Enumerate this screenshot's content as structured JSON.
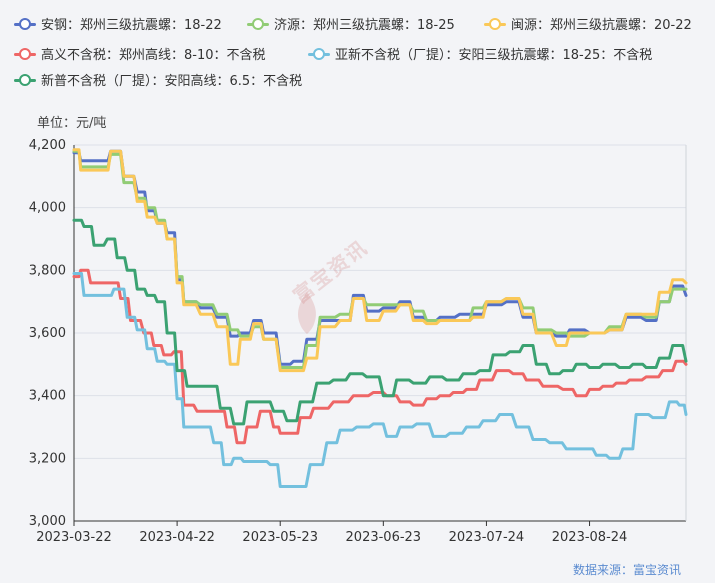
{
  "unit_label": "单位：元/吨",
  "source": "数据来源：富宝资讯",
  "watermark": "富宝资讯",
  "chart_data": {
    "type": "line",
    "ylim": [
      3000,
      4200
    ],
    "yticks": [
      3000,
      3200,
      3400,
      3600,
      3800,
      4000,
      4200
    ],
    "ytick_labels": [
      "3,000",
      "3,200",
      "3,400",
      "3,600",
      "3,800",
      "4,000",
      "4,200"
    ],
    "x_start": "2023-03-22",
    "x_end": "2023-09-22",
    "xticks": [
      "2023-03-22",
      "2023-04-22",
      "2023-05-23",
      "2023-06-23",
      "2023-07-24",
      "2023-08-24"
    ],
    "grid": true,
    "legend_position": "top",
    "series": [
      {
        "name": "安钢：郑州三级抗震螺：18-22",
        "color": "#5470c6",
        "points": [
          [
            "2023-03-22",
            4175
          ],
          [
            "2023-03-24",
            4150
          ],
          [
            "2023-03-30",
            4150
          ],
          [
            "2023-04-02",
            4180
          ],
          [
            "2023-04-06",
            4100
          ],
          [
            "2023-04-10",
            4050
          ],
          [
            "2023-04-13",
            3990
          ],
          [
            "2023-04-16",
            3950
          ],
          [
            "2023-04-19",
            3920
          ],
          [
            "2023-04-22",
            3770
          ],
          [
            "2023-04-24",
            3700
          ],
          [
            "2023-04-29",
            3680
          ],
          [
            "2023-05-04",
            3650
          ],
          [
            "2023-05-08",
            3590
          ],
          [
            "2023-05-11",
            3600
          ],
          [
            "2023-05-15",
            3640
          ],
          [
            "2023-05-18",
            3600
          ],
          [
            "2023-05-23",
            3500
          ],
          [
            "2023-05-27",
            3510
          ],
          [
            "2023-05-31",
            3580
          ],
          [
            "2023-06-04",
            3640
          ],
          [
            "2023-06-10",
            3640
          ],
          [
            "2023-06-14",
            3720
          ],
          [
            "2023-06-18",
            3670
          ],
          [
            "2023-06-23",
            3680
          ],
          [
            "2023-06-28",
            3700
          ],
          [
            "2023-07-02",
            3650
          ],
          [
            "2023-07-06",
            3640
          ],
          [
            "2023-07-10",
            3650
          ],
          [
            "2023-07-16",
            3660
          ],
          [
            "2023-07-20",
            3660
          ],
          [
            "2023-07-24",
            3690
          ],
          [
            "2023-07-30",
            3700
          ],
          [
            "2023-08-04",
            3650
          ],
          [
            "2023-08-08",
            3600
          ],
          [
            "2023-08-14",
            3590
          ],
          [
            "2023-08-18",
            3610
          ],
          [
            "2023-08-24",
            3600
          ],
          [
            "2023-08-30",
            3610
          ],
          [
            "2023-09-04",
            3650
          ],
          [
            "2023-09-10",
            3640
          ],
          [
            "2023-09-14",
            3700
          ],
          [
            "2023-09-18",
            3750
          ],
          [
            "2023-09-22",
            3720
          ]
        ]
      },
      {
        "name": "济源：郑州三级抗震螺：18-25",
        "color": "#91cc75",
        "points": [
          [
            "2023-03-22",
            4180
          ],
          [
            "2023-03-24",
            4130
          ],
          [
            "2023-03-30",
            4130
          ],
          [
            "2023-04-02",
            4170
          ],
          [
            "2023-04-06",
            4080
          ],
          [
            "2023-04-10",
            4030
          ],
          [
            "2023-04-13",
            4000
          ],
          [
            "2023-04-16",
            3960
          ],
          [
            "2023-04-19",
            3900
          ],
          [
            "2023-04-22",
            3780
          ],
          [
            "2023-04-24",
            3700
          ],
          [
            "2023-04-29",
            3690
          ],
          [
            "2023-05-04",
            3660
          ],
          [
            "2023-05-08",
            3610
          ],
          [
            "2023-05-11",
            3590
          ],
          [
            "2023-05-15",
            3620
          ],
          [
            "2023-05-18",
            3580
          ],
          [
            "2023-05-23",
            3490
          ],
          [
            "2023-05-27",
            3490
          ],
          [
            "2023-05-31",
            3560
          ],
          [
            "2023-06-04",
            3650
          ],
          [
            "2023-06-10",
            3660
          ],
          [
            "2023-06-14",
            3710
          ],
          [
            "2023-06-18",
            3690
          ],
          [
            "2023-06-23",
            3690
          ],
          [
            "2023-06-28",
            3690
          ],
          [
            "2023-07-02",
            3670
          ],
          [
            "2023-07-06",
            3640
          ],
          [
            "2023-07-10",
            3640
          ],
          [
            "2023-07-16",
            3640
          ],
          [
            "2023-07-20",
            3680
          ],
          [
            "2023-07-24",
            3700
          ],
          [
            "2023-07-30",
            3710
          ],
          [
            "2023-08-04",
            3680
          ],
          [
            "2023-08-08",
            3610
          ],
          [
            "2023-08-14",
            3600
          ],
          [
            "2023-08-18",
            3590
          ],
          [
            "2023-08-24",
            3600
          ],
          [
            "2023-08-30",
            3620
          ],
          [
            "2023-09-04",
            3660
          ],
          [
            "2023-09-10",
            3650
          ],
          [
            "2023-09-14",
            3700
          ],
          [
            "2023-09-18",
            3740
          ],
          [
            "2023-09-22",
            3740
          ]
        ]
      },
      {
        "name": "闽源：郑州三级抗震螺：20-22",
        "color": "#fac858",
        "points": [
          [
            "2023-03-22",
            4185
          ],
          [
            "2023-03-24",
            4120
          ],
          [
            "2023-03-30",
            4120
          ],
          [
            "2023-04-02",
            4180
          ],
          [
            "2023-04-06",
            4100
          ],
          [
            "2023-04-10",
            4020
          ],
          [
            "2023-04-13",
            3970
          ],
          [
            "2023-04-16",
            3950
          ],
          [
            "2023-04-19",
            3900
          ],
          [
            "2023-04-22",
            3760
          ],
          [
            "2023-04-24",
            3690
          ],
          [
            "2023-04-29",
            3660
          ],
          [
            "2023-05-04",
            3620
          ],
          [
            "2023-05-08",
            3500
          ],
          [
            "2023-05-11",
            3580
          ],
          [
            "2023-05-15",
            3630
          ],
          [
            "2023-05-18",
            3580
          ],
          [
            "2023-05-23",
            3480
          ],
          [
            "2023-05-27",
            3480
          ],
          [
            "2023-05-31",
            3520
          ],
          [
            "2023-06-04",
            3620
          ],
          [
            "2023-06-10",
            3640
          ],
          [
            "2023-06-14",
            3710
          ],
          [
            "2023-06-18",
            3640
          ],
          [
            "2023-06-23",
            3670
          ],
          [
            "2023-06-28",
            3690
          ],
          [
            "2023-07-02",
            3640
          ],
          [
            "2023-07-06",
            3630
          ],
          [
            "2023-07-10",
            3640
          ],
          [
            "2023-07-16",
            3640
          ],
          [
            "2023-07-20",
            3650
          ],
          [
            "2023-07-24",
            3700
          ],
          [
            "2023-07-30",
            3710
          ],
          [
            "2023-08-04",
            3660
          ],
          [
            "2023-08-08",
            3600
          ],
          [
            "2023-08-14",
            3560
          ],
          [
            "2023-08-18",
            3600
          ],
          [
            "2023-08-24",
            3600
          ],
          [
            "2023-08-30",
            3610
          ],
          [
            "2023-09-04",
            3660
          ],
          [
            "2023-09-10",
            3660
          ],
          [
            "2023-09-14",
            3730
          ],
          [
            "2023-09-18",
            3770
          ],
          [
            "2023-09-22",
            3760
          ]
        ]
      },
      {
        "name": "高义不含税：郑州高线：8-10：不含税",
        "color": "#ee6666",
        "points": [
          [
            "2023-03-22",
            3780
          ],
          [
            "2023-03-24",
            3800
          ],
          [
            "2023-03-27",
            3760
          ],
          [
            "2023-04-02",
            3760
          ],
          [
            "2023-04-05",
            3710
          ],
          [
            "2023-04-08",
            3640
          ],
          [
            "2023-04-12",
            3600
          ],
          [
            "2023-04-15",
            3560
          ],
          [
            "2023-04-18",
            3530
          ],
          [
            "2023-04-21",
            3540
          ],
          [
            "2023-04-24",
            3370
          ],
          [
            "2023-04-28",
            3350
          ],
          [
            "2023-05-04",
            3350
          ],
          [
            "2023-05-07",
            3300
          ],
          [
            "2023-05-10",
            3250
          ],
          [
            "2023-05-13",
            3300
          ],
          [
            "2023-05-17",
            3350
          ],
          [
            "2023-05-21",
            3300
          ],
          [
            "2023-05-23",
            3280
          ],
          [
            "2023-05-26",
            3280
          ],
          [
            "2023-05-29",
            3330
          ],
          [
            "2023-06-02",
            3360
          ],
          [
            "2023-06-08",
            3380
          ],
          [
            "2023-06-14",
            3400
          ],
          [
            "2023-06-20",
            3410
          ],
          [
            "2023-06-24",
            3400
          ],
          [
            "2023-06-28",
            3380
          ],
          [
            "2023-07-02",
            3370
          ],
          [
            "2023-07-06",
            3390
          ],
          [
            "2023-07-10",
            3400
          ],
          [
            "2023-07-14",
            3410
          ],
          [
            "2023-07-18",
            3420
          ],
          [
            "2023-07-22",
            3450
          ],
          [
            "2023-07-27",
            3480
          ],
          [
            "2023-08-01",
            3470
          ],
          [
            "2023-08-05",
            3450
          ],
          [
            "2023-08-10",
            3430
          ],
          [
            "2023-08-16",
            3420
          ],
          [
            "2023-08-20",
            3400
          ],
          [
            "2023-08-24",
            3420
          ],
          [
            "2023-08-28",
            3430
          ],
          [
            "2023-09-01",
            3440
          ],
          [
            "2023-09-05",
            3450
          ],
          [
            "2023-09-10",
            3460
          ],
          [
            "2023-09-15",
            3480
          ],
          [
            "2023-09-19",
            3510
          ],
          [
            "2023-09-22",
            3500
          ]
        ]
      },
      {
        "name": "亚新不含税（厂提）：安阳三级抗震螺：18-25：不含税",
        "color": "#73c0de",
        "points": [
          [
            "2023-03-22",
            3790
          ],
          [
            "2023-03-25",
            3720
          ],
          [
            "2023-03-31",
            3720
          ],
          [
            "2023-04-03",
            3740
          ],
          [
            "2023-04-07",
            3650
          ],
          [
            "2023-04-10",
            3610
          ],
          [
            "2023-04-13",
            3550
          ],
          [
            "2023-04-16",
            3510
          ],
          [
            "2023-04-19",
            3500
          ],
          [
            "2023-04-22",
            3390
          ],
          [
            "2023-04-24",
            3300
          ],
          [
            "2023-04-29",
            3300
          ],
          [
            "2023-05-03",
            3250
          ],
          [
            "2023-05-06",
            3180
          ],
          [
            "2023-05-09",
            3200
          ],
          [
            "2023-05-12",
            3190
          ],
          [
            "2023-05-16",
            3190
          ],
          [
            "2023-05-20",
            3180
          ],
          [
            "2023-05-23",
            3110
          ],
          [
            "2023-05-27",
            3110
          ],
          [
            "2023-06-01",
            3180
          ],
          [
            "2023-06-06",
            3250
          ],
          [
            "2023-06-10",
            3290
          ],
          [
            "2023-06-15",
            3300
          ],
          [
            "2023-06-20",
            3310
          ],
          [
            "2023-06-24",
            3270
          ],
          [
            "2023-06-28",
            3300
          ],
          [
            "2023-07-03",
            3310
          ],
          [
            "2023-07-08",
            3270
          ],
          [
            "2023-07-13",
            3280
          ],
          [
            "2023-07-18",
            3300
          ],
          [
            "2023-07-23",
            3320
          ],
          [
            "2023-07-28",
            3340
          ],
          [
            "2023-08-02",
            3300
          ],
          [
            "2023-08-07",
            3260
          ],
          [
            "2023-08-12",
            3250
          ],
          [
            "2023-08-17",
            3230
          ],
          [
            "2023-08-22",
            3230
          ],
          [
            "2023-08-26",
            3210
          ],
          [
            "2023-08-30",
            3200
          ],
          [
            "2023-09-03",
            3230
          ],
          [
            "2023-09-07",
            3340
          ],
          [
            "2023-09-12",
            3330
          ],
          [
            "2023-09-17",
            3380
          ],
          [
            "2023-09-20",
            3370
          ],
          [
            "2023-09-22",
            3340
          ]
        ]
      },
      {
        "name": "新普不含税（厂提）：安阳高线：6.5：不含税",
        "color": "#3ba272",
        "points": [
          [
            "2023-03-22",
            3960
          ],
          [
            "2023-03-25",
            3940
          ],
          [
            "2023-03-28",
            3880
          ],
          [
            "2023-04-01",
            3900
          ],
          [
            "2023-04-04",
            3840
          ],
          [
            "2023-04-07",
            3800
          ],
          [
            "2023-04-10",
            3740
          ],
          [
            "2023-04-13",
            3720
          ],
          [
            "2023-04-16",
            3700
          ],
          [
            "2023-04-19",
            3600
          ],
          [
            "2023-04-22",
            3480
          ],
          [
            "2023-04-25",
            3430
          ],
          [
            "2023-05-01",
            3430
          ],
          [
            "2023-05-05",
            3360
          ],
          [
            "2023-05-09",
            3310
          ],
          [
            "2023-05-13",
            3380
          ],
          [
            "2023-05-17",
            3380
          ],
          [
            "2023-05-21",
            3350
          ],
          [
            "2023-05-25",
            3320
          ],
          [
            "2023-05-29",
            3380
          ],
          [
            "2023-06-03",
            3440
          ],
          [
            "2023-06-08",
            3450
          ],
          [
            "2023-06-13",
            3470
          ],
          [
            "2023-06-18",
            3460
          ],
          [
            "2023-06-23",
            3400
          ],
          [
            "2023-06-27",
            3450
          ],
          [
            "2023-07-02",
            3440
          ],
          [
            "2023-07-07",
            3460
          ],
          [
            "2023-07-12",
            3450
          ],
          [
            "2023-07-17",
            3470
          ],
          [
            "2023-07-22",
            3480
          ],
          [
            "2023-07-26",
            3530
          ],
          [
            "2023-07-31",
            3540
          ],
          [
            "2023-08-04",
            3560
          ],
          [
            "2023-08-08",
            3500
          ],
          [
            "2023-08-12",
            3470
          ],
          [
            "2023-08-16",
            3480
          ],
          [
            "2023-08-20",
            3500
          ],
          [
            "2023-08-24",
            3490
          ],
          [
            "2023-08-28",
            3500
          ],
          [
            "2023-09-02",
            3490
          ],
          [
            "2023-09-06",
            3500
          ],
          [
            "2023-09-10",
            3490
          ],
          [
            "2023-09-14",
            3520
          ],
          [
            "2023-09-18",
            3560
          ],
          [
            "2023-09-22",
            3510
          ]
        ]
      }
    ]
  }
}
